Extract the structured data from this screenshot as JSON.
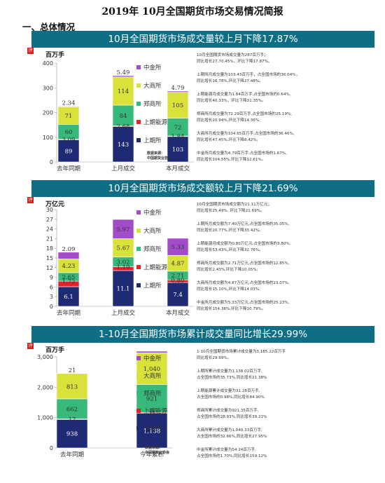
{
  "document_title": "2019年 10月全国期货市场交易情况简报",
  "section_heading": "一、总体情况",
  "badge_text": "评",
  "colors": {
    "banner": "#0d6e86",
    "上期所": "#1f2a74",
    "上期能源": "#e8202a",
    "郑商所": "#36b97a",
    "大商所": "#d8e23b",
    "中金所": "#a34cc9",
    "bar_edge": "#ffffff"
  },
  "exchange_order": [
    "上期所",
    "上期能源",
    "郑商所",
    "大商所",
    "中金所"
  ],
  "panels": [
    {
      "banner": "10月全国期货市场成交量较上月下降17.87%",
      "unit": "百万手",
      "descriptions": [
        "10月全国期货市场成交量为287百万手；\n同比增长27.70.45%，环比下降17.87%。",
        "上期所月成交量为103.43百万手，占全国市场的36.04%，\n同比增长16.78%,环比下降27.48%。",
        "上期能源月成交量为1.84百万手,占全国市场的0.64%,\n同比增长40.33%，环比下降31.35%。",
        "郑商所月成交量为72.29百万手,占全国市场的25.19%,\n同比增长20.94%,环比下降14.36%;",
        "大商所月成交量为104.65百万手,占全国市场的36.46%,\n同比增长47.45%,环比下降8.42%;",
        "中金所月成交量为4.79百万手,占全国市场的1.67%,\n同比增长104.55%,环比下降12.61%。"
      ],
      "source": "数据来源：\n中国期货业协会"
    },
    {
      "banner": "10月全国期货市场成交额较上月下降21.69%",
      "unit": "万亿元",
      "descriptions": [
        "10月全国期货市场成交额为21.11万亿元；\n同比增长25.49%, 环比下降21.69%。",
        "上期所月成交额为7.40万亿元,占全国市场的35.05%,\n同比增长20.77%,环比下降33.42%。",
        "上期能源月成交额为0.80万亿元,占全国市场的3.80%,\n同比增长53.43%,环比下降32.76%。",
        "郑商所月成交额为2.71万亿元,占全国市场的12.85%,\n同比增长2.43%,环比下降10.05%;",
        "大商所月成交额为4.87万亿元,占全国市场的23.07%,\n同比增长15.10%,环比下降14.03%;",
        "中金所月成交额为5.33万亿元,占全国市场的25.23%,\n同比增长154.38%,环比下降10.79%。"
      ],
      "source": ""
    },
    {
      "banner": "1-10月全国期货市场累计成交量同比增长29.99%",
      "unit": "百万手",
      "descriptions": [
        "1-10月全国期货市场累计成交量为3,185.22百万手\n同比增长29.99%。",
        "上期所累计成交量为1,138.02百万手,\n占全国市场的35.73%,同比增长21.38%",
        "上期能源累计成交量为31.28百万手,\n占全国市场的0.98%,同比增长84.90%",
        "郑商所累计成交量为921.35百万手,\n占全国市场的28.93%,同比增长39.21%",
        "大商所累计成交量为1,040.33百万手,\n占全国市场的32.66%,同比增长27.95%",
        "中金所累计成交量为54.24百万手,\n占全国市场的1.70%,同比增长159.12%"
      ],
      "source": "数据来源:\n中国期货业协会"
    }
  ],
  "chart_data": [
    {
      "type": "bar",
      "stacked": true,
      "categories": [
        "去年同期",
        "上月成交",
        "本月成交"
      ],
      "series": [
        {
          "name": "上期所",
          "values": [
            89,
            143,
            103
          ],
          "labels": [
            "89",
            "143",
            "103"
          ]
        },
        {
          "name": "上期能源",
          "values": [
            3.09,
            2.68,
            1.84
          ],
          "labels": [
            "3.09",
            "2.68",
            "1.84"
          ]
        },
        {
          "name": "郑商所",
          "values": [
            60,
            84,
            72
          ],
          "labels": [
            "60",
            "84",
            "72"
          ]
        },
        {
          "name": "大商所",
          "values": [
            71,
            114,
            105
          ],
          "labels": [
            "71",
            "114",
            "105"
          ]
        },
        {
          "name": "中金所",
          "values": [
            2.34,
            5.49,
            4.79
          ],
          "labels": [
            "2.34",
            "5.49",
            "4.79"
          ]
        }
      ],
      "ylim": [
        0,
        400
      ],
      "yticks": [
        0,
        100,
        200,
        300,
        400
      ],
      "ytick_labels": [
        "0",
        "100",
        "200",
        "300",
        "400"
      ],
      "ylabel": "百万手",
      "legend": "right",
      "grid": false
    },
    {
      "type": "bar",
      "stacked": true,
      "categories": [
        "去年同期",
        "上月成交",
        "本月成交"
      ],
      "series": [
        {
          "name": "上期所",
          "values": [
            6.1,
            11.1,
            7.4
          ],
          "labels": [
            "6.1",
            "11.1",
            "7.4"
          ]
        },
        {
          "name": "上期能源",
          "values": [
            1.72,
            1.19,
            0.8
          ],
          "labels": [
            "1.72",
            "1.19",
            "0.80"
          ]
        },
        {
          "name": "郑商所",
          "values": [
            2.65,
            3.02,
            2.71
          ],
          "labels": [
            "2.65",
            "3.02",
            "2.71"
          ]
        },
        {
          "name": "大商所",
          "values": [
            4.23,
            5.67,
            4.87
          ],
          "labels": [
            "4.23",
            "5.67",
            "4.87"
          ]
        },
        {
          "name": "中金所",
          "values": [
            2.09,
            5.97,
            5.33
          ],
          "labels": [
            "2.09",
            "5.97",
            "5.33"
          ]
        }
      ],
      "ylim": [
        0,
        30
      ],
      "yticks": [
        0,
        3,
        6,
        9,
        12,
        15,
        18,
        21,
        24,
        27,
        30
      ],
      "ytick_labels": [
        "0",
        "3",
        "6",
        "9",
        "12",
        "15",
        "18",
        "21",
        "24",
        "27",
        "30"
      ],
      "ylabel": "万亿元",
      "legend": "right",
      "grid": false
    },
    {
      "type": "bar",
      "stacked": true,
      "categories": [
        "去年同期",
        "今年累积"
      ],
      "series": [
        {
          "name": "上期所",
          "values": [
            938,
            1138
          ],
          "labels": [
            "938",
            "1,138"
          ]
        },
        {
          "name": "上期能源",
          "values": [
            17,
            31
          ],
          "labels": [
            "17",
            "31"
          ]
        },
        {
          "name": "郑商所",
          "values": [
            662,
            921
          ],
          "labels": [
            "662",
            "921"
          ]
        },
        {
          "name": "大商所",
          "values": [
            813,
            1040
          ],
          "labels": [
            "813",
            "1,040"
          ]
        },
        {
          "name": "中金所",
          "values": [
            21,
            54
          ],
          "labels": [
            "21",
            ""
          ]
        }
      ],
      "ylim": [
        0,
        3000
      ],
      "yticks": [
        0,
        1000,
        2000,
        3000
      ],
      "ytick_labels": [
        "0",
        "1,000",
        "2,000",
        "3,000"
      ],
      "ylabel": "百万手",
      "legend": "right",
      "grid": false
    }
  ]
}
